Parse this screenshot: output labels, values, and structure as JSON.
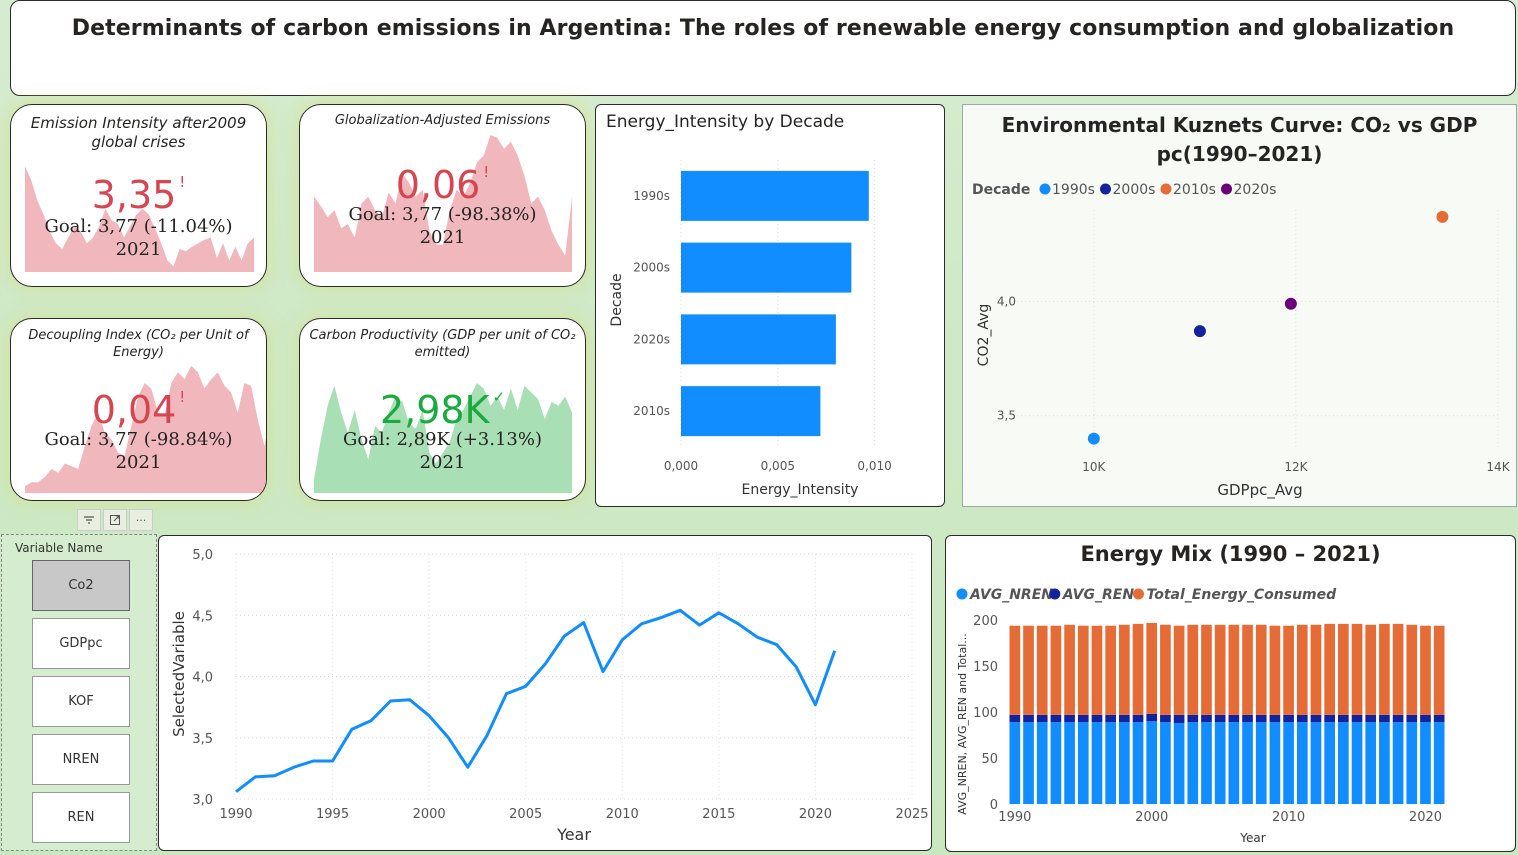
{
  "title": "Determinants of carbon emissions in Argentina: The roles of renewable energy consumption and globalization",
  "kpis": [
    {
      "title": "Emission Intensity after2009 global crises",
      "value": "3,35",
      "mark": "!",
      "goal": "Goal: 3,77 (-11.04%)",
      "year": "2021",
      "status": "bad",
      "color": "#f0b8bd",
      "trend": [
        0.92,
        0.8,
        0.62,
        0.5,
        0.35,
        0.25,
        0.2,
        0.3,
        0.4,
        0.35,
        0.25,
        0.3,
        0.4,
        0.55,
        0.45,
        0.42,
        0.3,
        0.4,
        0.5,
        0.55,
        0.5,
        0.38,
        0.25,
        0.1,
        0.05,
        0.2,
        0.18,
        0.22,
        0.25,
        0.28,
        0.3,
        0.12,
        0.25,
        0.1,
        0.22,
        0.1,
        0.25,
        0.3
      ]
    },
    {
      "title": "Globalization-Adjusted Emissions",
      "value": "0,06",
      "mark": "!",
      "goal": "Goal: 3,77 (-98.38%)",
      "year": "2021",
      "status": "bad",
      "color": "#f0b8bd",
      "trend": [
        0.55,
        0.48,
        0.4,
        0.45,
        0.32,
        0.35,
        0.25,
        0.5,
        0.55,
        0.45,
        0.4,
        0.58,
        0.5,
        0.72,
        0.65,
        0.55,
        0.6,
        0.3,
        0.2,
        0.2,
        0.45,
        0.6,
        0.55,
        0.65,
        0.8,
        0.85,
        1.0,
        0.98,
        0.9,
        0.95,
        0.85,
        0.7,
        0.5,
        0.55,
        0.45,
        0.3,
        0.2,
        0.12,
        0.55
      ]
    },
    {
      "title": "Decoupling Index (CO₂ per Unit of Energy)",
      "value": "0,04",
      "mark": "!",
      "goal": "Goal: 3,77 (-98.84%)",
      "year": "2021",
      "status": "bad",
      "color": "#f0b8bd",
      "trend": [
        0.05,
        0.08,
        0.08,
        0.12,
        0.18,
        0.15,
        0.22,
        0.2,
        0.18,
        0.35,
        0.5,
        0.6,
        0.45,
        0.4,
        0.3,
        0.28,
        0.5,
        0.72,
        0.82,
        0.78,
        0.6,
        0.58,
        0.82,
        0.9,
        0.85,
        0.95,
        0.9,
        0.78,
        0.85,
        0.9,
        0.8,
        0.75,
        0.6,
        0.82,
        0.8,
        0.55,
        0.35,
        0.62
      ]
    },
    {
      "title": "Carbon Productivity (GDP per unit of CO₂ emitted)",
      "value": "2,98K",
      "mark": "✓",
      "goal": "Goal: 2,89K (+3.13%)",
      "year": "2021",
      "status": "good",
      "color": "#a8dfb4",
      "trend": [
        0.1,
        0.4,
        0.65,
        0.8,
        0.6,
        0.45,
        0.62,
        0.4,
        0.25,
        0.5,
        0.45,
        0.6,
        0.72,
        0.68,
        0.52,
        0.48,
        0.62,
        0.3,
        0.22,
        0.3,
        0.38,
        0.55,
        0.62,
        0.72,
        0.82,
        0.78,
        0.65,
        0.72,
        0.62,
        0.78,
        0.62,
        0.8,
        0.75,
        0.7,
        0.55,
        0.68,
        0.65,
        0.72,
        0.6
      ]
    }
  ],
  "energy_intensity": {
    "title": "Energy_Intensity by Decade",
    "xlabel": "Energy_Intensity",
    "ylabel": "Decade",
    "xticks": [
      "0,000",
      "0,005",
      "0,010"
    ],
    "color": "#118dff"
  },
  "ekc": {
    "title_line1": "Environmental Kuznets Curve: CO₂ vs GDP",
    "title_line2": "pc(1990–2021)",
    "legend_title": "Decade",
    "xlabel": "GDPpc_Avg",
    "ylabel": "CO2_Avg",
    "xticks": [
      "10K",
      "12K",
      "14K"
    ],
    "yticks": [
      "4,0",
      "3,5"
    ]
  },
  "slicer": {
    "title": "Variable Name",
    "items": [
      "Co2",
      "GDPpc",
      "KOF",
      "NREN",
      "REN"
    ],
    "selected": "Co2",
    "toolbar": [
      "filter-icon",
      "focus-mode-icon",
      "more-options-icon"
    ]
  },
  "line_chart": {
    "xlabel": "Year",
    "ylabel": "SelectedVariable",
    "yticks": [
      "5,0",
      "4,5",
      "4,0",
      "3,5",
      "3,0"
    ],
    "xticks": [
      "1990",
      "1995",
      "2000",
      "2005",
      "2010",
      "2015",
      "2020",
      "2025"
    ],
    "color": "#118dff"
  },
  "energy_mix": {
    "title": "Energy Mix (1990 – 2021)",
    "xlabel": "Year",
    "ylabel": "AVG_NREN, AVG_REN and Total...",
    "yticks": [
      "200",
      "150",
      "100",
      "50",
      "0"
    ],
    "xticks": [
      "1990",
      "2000",
      "2010",
      "2020"
    ]
  },
  "chart_data": [
    {
      "type": "bar",
      "orientation": "horizontal",
      "title": "Energy_Intensity by Decade",
      "xlabel": "Energy_Intensity",
      "ylabel": "Decade",
      "categories": [
        "1990s",
        "2000s",
        "2020s",
        "2010s"
      ],
      "values": [
        0.0097,
        0.0088,
        0.008,
        0.0072
      ],
      "xlim": [
        0,
        0.0125
      ],
      "grid": true
    },
    {
      "type": "scatter",
      "title": "Environmental Kuznets Curve: CO₂ vs GDP pc(1990–2021)",
      "xlabel": "GDPpc_Avg",
      "ylabel": "CO2_Avg",
      "xlim": [
        9200,
        14000
      ],
      "ylim": [
        3.35,
        4.4
      ],
      "legend": "top-left",
      "series": [
        {
          "name": "1990s",
          "color": "#118dff",
          "points": [
            [
              10000,
              3.4
            ]
          ]
        },
        {
          "name": "2000s",
          "color": "#12239e",
          "points": [
            [
              11050,
              3.87
            ]
          ]
        },
        {
          "name": "2010s",
          "color": "#e66c37",
          "points": [
            [
              13450,
              4.37
            ]
          ]
        },
        {
          "name": "2020s",
          "color": "#6b007b",
          "points": [
            [
              11950,
              3.99
            ]
          ]
        }
      ]
    },
    {
      "type": "line",
      "xlabel": "Year",
      "ylabel": "SelectedVariable",
      "ylim": [
        3.0,
        5.0
      ],
      "xlim": [
        1990,
        2025
      ],
      "grid": true,
      "x": [
        1990,
        1991,
        1992,
        1993,
        1994,
        1995,
        1996,
        1997,
        1998,
        1999,
        2000,
        2001,
        2002,
        2003,
        2004,
        2005,
        2006,
        2007,
        2008,
        2009,
        2010,
        2011,
        2012,
        2013,
        2014,
        2015,
        2016,
        2017,
        2018,
        2019,
        2020,
        2021
      ],
      "series": [
        {
          "values": [
            3.06,
            3.18,
            3.19,
            3.26,
            3.31,
            3.31,
            3.57,
            3.64,
            3.8,
            3.81,
            3.68,
            3.5,
            3.26,
            3.52,
            3.86,
            3.92,
            4.1,
            4.33,
            4.44,
            4.04,
            4.3,
            4.43,
            4.48,
            4.54,
            4.42,
            4.52,
            4.43,
            4.32,
            4.26,
            4.08,
            3.77,
            4.21
          ]
        }
      ]
    },
    {
      "type": "bar",
      "stacked": true,
      "title": "Energy Mix (1990 – 2021)",
      "xlabel": "Year",
      "ylabel": "AVG_NREN, AVG_REN and Total...",
      "ylim": [
        0,
        210
      ],
      "legend": "top-left",
      "x": [
        1990,
        1991,
        1992,
        1993,
        1994,
        1995,
        1996,
        1997,
        1998,
        1999,
        2000,
        2001,
        2002,
        2003,
        2004,
        2005,
        2006,
        2007,
        2008,
        2009,
        2010,
        2011,
        2012,
        2013,
        2014,
        2015,
        2016,
        2017,
        2018,
        2019,
        2020,
        2021
      ],
      "series": [
        {
          "name": "AVG_NREN",
          "color": "#118dff",
          "values": [
            89,
            89,
            89,
            89,
            89,
            89,
            89,
            89,
            89,
            89,
            90,
            89,
            88,
            89,
            89,
            89,
            89,
            89,
            89,
            89,
            89,
            89,
            89,
            89,
            89,
            89,
            89,
            89,
            89,
            89,
            89,
            89
          ]
        },
        {
          "name": "AVG_REN",
          "color": "#12239e",
          "values": [
            8,
            8,
            8,
            8,
            8,
            8,
            8,
            8,
            8,
            8,
            8,
            8,
            9,
            8,
            8,
            8,
            8,
            8,
            8,
            8,
            8,
            8,
            8,
            8,
            8,
            8,
            8,
            8,
            8,
            8,
            8,
            8
          ]
        },
        {
          "name": "Total_Energy_Consumed",
          "color": "#e66c37",
          "values": [
            97,
            97,
            97,
            97,
            98,
            97,
            97,
            97,
            98,
            99,
            99,
            98,
            97,
            98,
            98,
            98,
            98,
            98,
            98,
            97,
            97,
            98,
            98,
            99,
            99,
            99,
            98,
            99,
            99,
            98,
            97,
            97
          ]
        }
      ]
    }
  ]
}
